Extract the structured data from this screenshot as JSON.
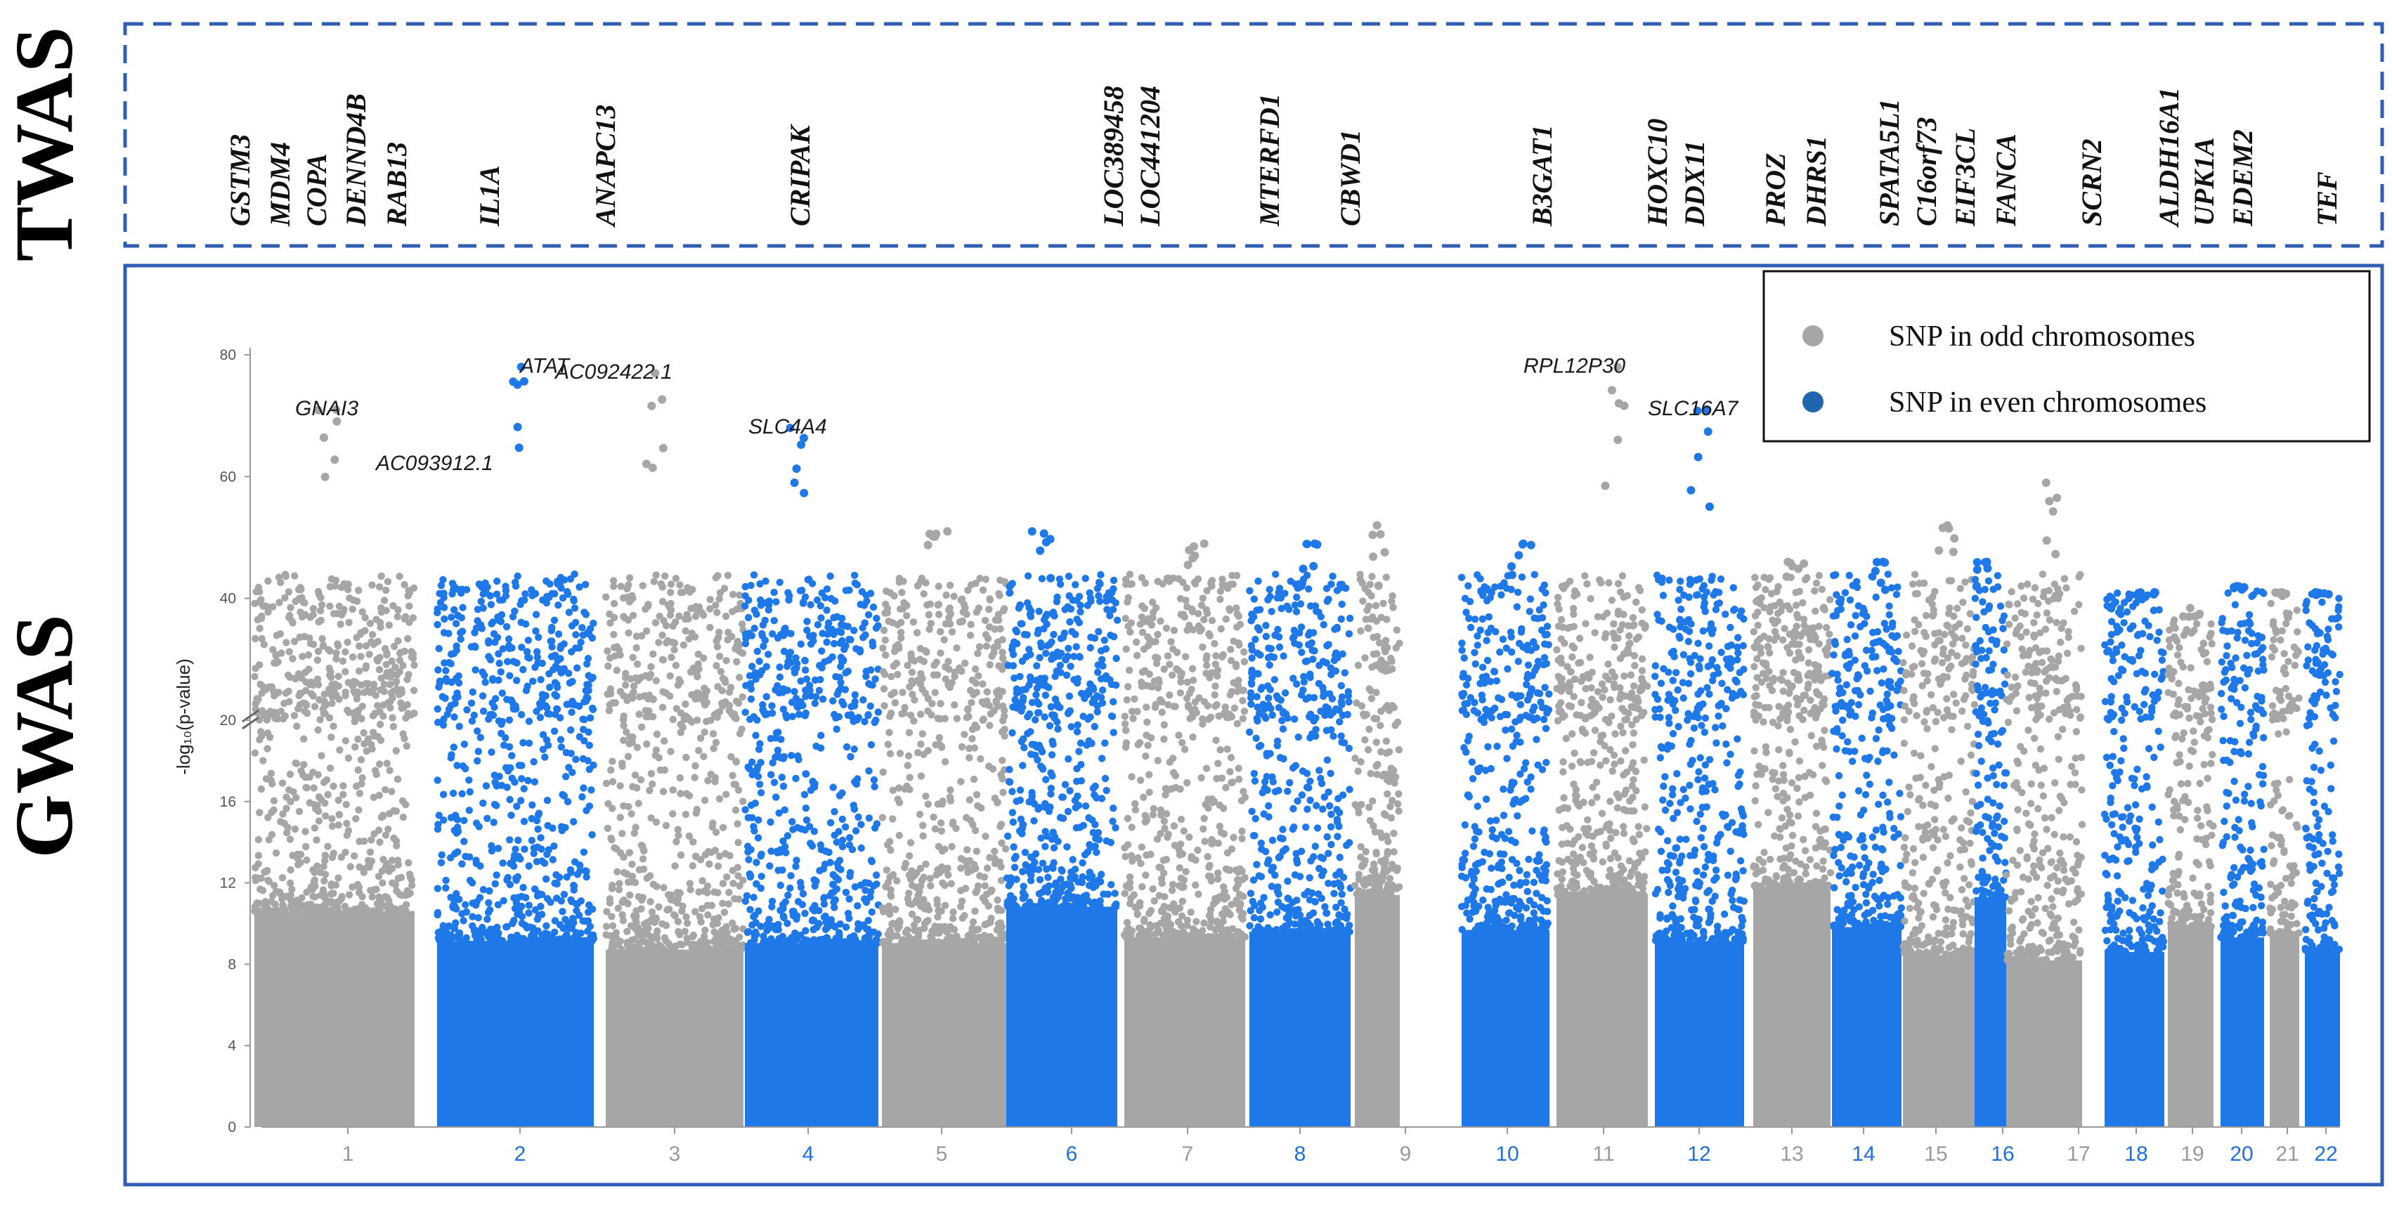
{
  "sections": {
    "twas": "TWAS",
    "gwas": "GWAS"
  },
  "twas_genes": [
    "GSTM3",
    "MDM4",
    "COPA",
    "DENND4B",
    "RAB13",
    "IL1A",
    "ANAPC13",
    "CRIPAK",
    "LOC389458",
    "LOC441204",
    "MTERFD1",
    "CBWD1",
    "B3GAT1",
    "HOXC10",
    "DDX11",
    "PROZ",
    "DHRS1",
    "SPATA5L1",
    "C16orf73",
    "EIF3CL",
    "FANCA",
    "SCRN2",
    "ALDH16A1",
    "UPK1A",
    "EDEM2",
    "TEF"
  ],
  "colors": {
    "odd": "#a6a6a6",
    "even": "#1f78e8",
    "frame": "#2f5fb5"
  },
  "legend": [
    {
      "label": "SNP in odd chromosomes",
      "color": "#a6a6a6"
    },
    {
      "label": "SNP in even chromosomes",
      "color": "#2166ac"
    }
  ],
  "chart_data": {
    "type": "scatter",
    "title": "",
    "xlabel": "",
    "ylabel": "-log₁₀(p-value)",
    "y_broken_axis": {
      "lower": [
        0,
        20
      ],
      "upper": [
        20,
        80
      ]
    },
    "yticks": [
      0,
      4,
      8,
      12,
      16,
      20,
      40,
      60,
      80
    ],
    "chromosomes": [
      "1",
      "2",
      "3",
      "4",
      "5",
      "6",
      "7",
      "8",
      "9",
      "10",
      "11",
      "12",
      "13",
      "14",
      "15",
      "16",
      "17",
      "18",
      "19",
      "20",
      "21",
      "22"
    ],
    "chromosome_max": [
      71,
      78,
      77,
      68,
      51,
      51,
      49,
      49,
      52,
      49,
      78,
      71,
      46,
      46,
      52,
      46,
      59,
      41,
      37,
      42,
      41,
      41
    ],
    "grid": false,
    "legend_position": "top-right",
    "peak_labels": [
      {
        "gene": "GNAI3",
        "chromosome": "1",
        "y": 71
      },
      {
        "gene": "AC093912.1",
        "chromosome": "2",
        "y": 62
      },
      {
        "gene": "ATAT",
        "chromosome": "2",
        "y": 78
      },
      {
        "gene": "AC092422.1",
        "chromosome": "3",
        "y": 77
      },
      {
        "gene": "SLC4A4",
        "chromosome": "4",
        "y": 68
      },
      {
        "gene": "RPL12P30",
        "chromosome": "11",
        "y": 78
      },
      {
        "gene": "SLC16A7",
        "chromosome": "12",
        "y": 71
      }
    ]
  }
}
